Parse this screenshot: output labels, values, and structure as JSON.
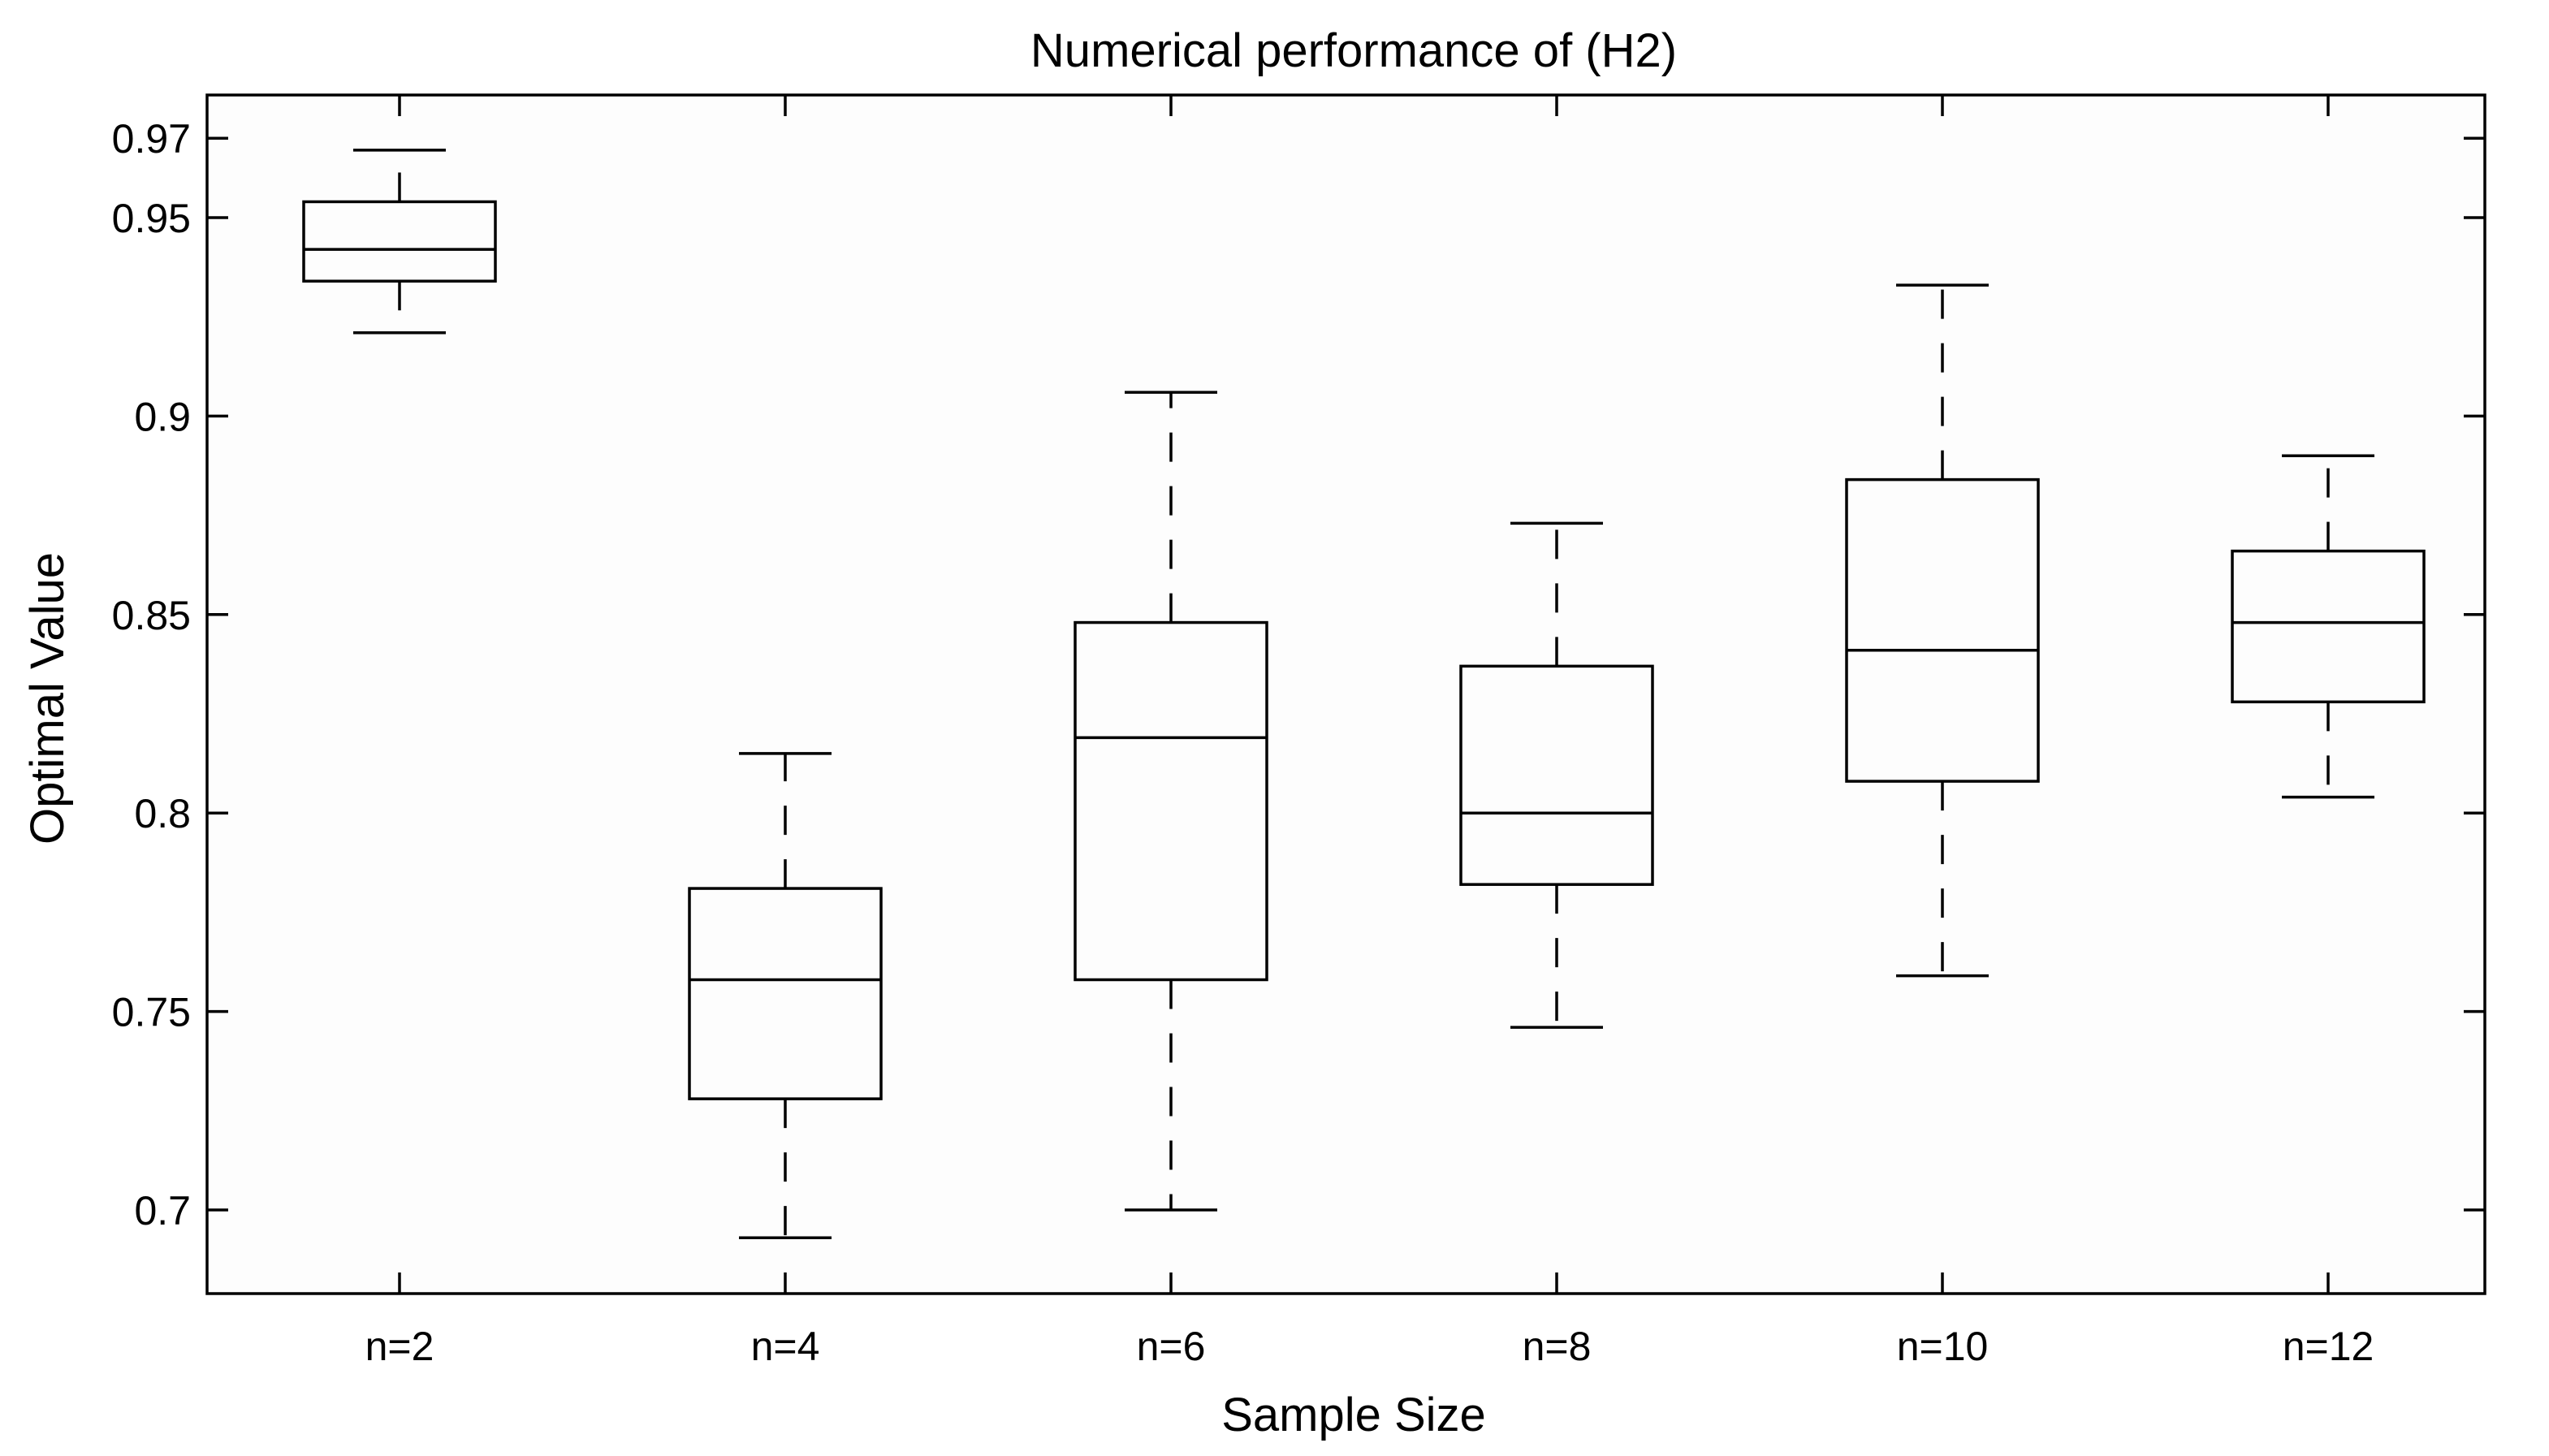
{
  "chart_data": {
    "type": "box",
    "title": "Numerical performance of (H2)",
    "xlabel": "Sample Size",
    "ylabel": "Optimal Value",
    "ylim": [
      0.68,
      0.98
    ],
    "yticks": [
      0.7,
      0.75,
      0.8,
      0.85,
      0.9,
      0.95,
      0.97
    ],
    "ytick_labels": [
      "0.7",
      "0.75",
      "0.8",
      "0.85",
      "0.9",
      "0.95",
      "0.97"
    ],
    "categories": [
      "n=2",
      "n=4",
      "n=6",
      "n=8",
      "n=10",
      "n=12"
    ],
    "boxes": [
      {
        "label": "n=2",
        "whisker_low": 0.921,
        "q1": 0.934,
        "median": 0.942,
        "q3": 0.954,
        "whisker_high": 0.967
      },
      {
        "label": "n=4",
        "whisker_low": 0.693,
        "q1": 0.728,
        "median": 0.758,
        "q3": 0.781,
        "whisker_high": 0.815
      },
      {
        "label": "n=6",
        "whisker_low": 0.7,
        "q1": 0.758,
        "median": 0.819,
        "q3": 0.848,
        "whisker_high": 0.906
      },
      {
        "label": "n=8",
        "whisker_low": 0.746,
        "q1": 0.782,
        "median": 0.8,
        "q3": 0.837,
        "whisker_high": 0.873
      },
      {
        "label": "n=10",
        "whisker_low": 0.759,
        "q1": 0.808,
        "median": 0.841,
        "q3": 0.884,
        "whisker_high": 0.933
      },
      {
        "label": "n=12",
        "whisker_low": 0.804,
        "q1": 0.828,
        "median": 0.848,
        "q3": 0.866,
        "whisker_high": 0.89
      }
    ]
  }
}
